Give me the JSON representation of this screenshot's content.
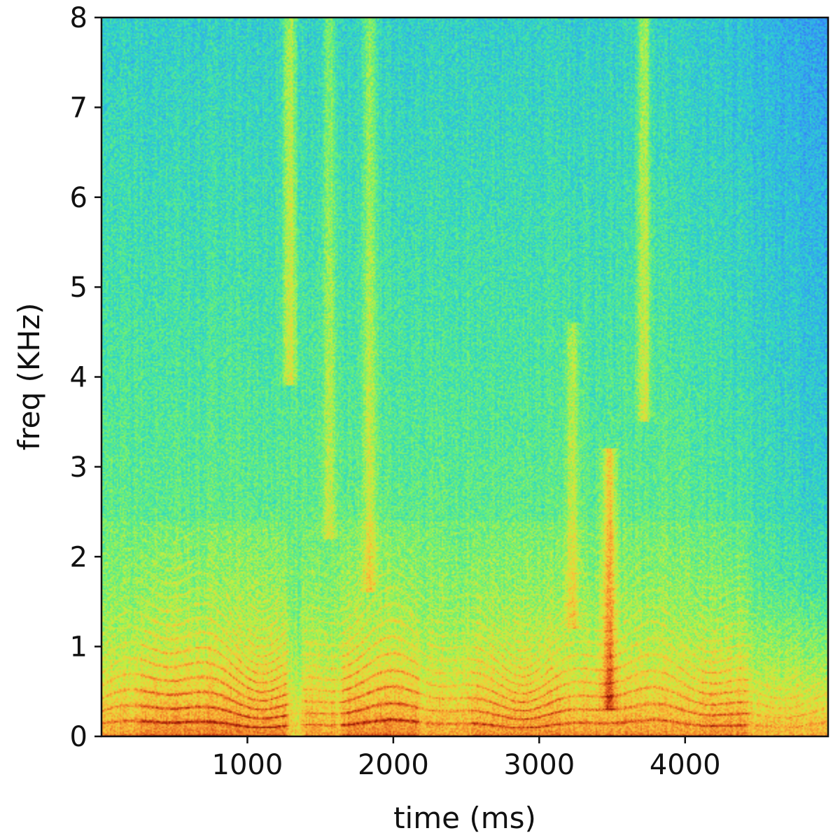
{
  "chart_data": {
    "type": "heatmap",
    "title": "",
    "xlabel": "time (ms)",
    "ylabel": "freq (KHz)",
    "xlim": [
      0,
      4980
    ],
    "ylim": [
      0,
      8
    ],
    "x_ticks": [
      {
        "value": 1000,
        "label": "1000"
      },
      {
        "value": 2000,
        "label": "2000"
      },
      {
        "value": 3000,
        "label": "3000"
      },
      {
        "value": 4000,
        "label": "4000"
      }
    ],
    "y_ticks": [
      {
        "value": 0,
        "label": "0"
      },
      {
        "value": 1,
        "label": "1"
      },
      {
        "value": 2,
        "label": "2"
      },
      {
        "value": 3,
        "label": "3"
      },
      {
        "value": 4,
        "label": "4"
      },
      {
        "value": 5,
        "label": "5"
      },
      {
        "value": 6,
        "label": "6"
      },
      {
        "value": 7,
        "label": "7"
      },
      {
        "value": 8,
        "label": "8"
      }
    ],
    "colormap": [
      "#3a5ef7",
      "#33a2f2",
      "#2ed6c8",
      "#67f07a",
      "#c6ee3f",
      "#f7c93a",
      "#f58a2c",
      "#d74a15",
      "#8e1505"
    ],
    "grid": false,
    "features": {
      "broadband_bursts": [
        {
          "time_ms": 1290,
          "freq_min_khz": 3.9,
          "freq_max_khz": 8.0,
          "strength": 0.75
        },
        {
          "time_ms": 1560,
          "freq_min_khz": 2.2,
          "freq_max_khz": 8.0,
          "strength": 0.55
        },
        {
          "time_ms": 1840,
          "freq_min_khz": 1.6,
          "freq_max_khz": 8.0,
          "strength": 0.6
        },
        {
          "time_ms": 3230,
          "freq_min_khz": 1.2,
          "freq_max_khz": 4.6,
          "strength": 0.55
        },
        {
          "time_ms": 3480,
          "freq_min_khz": 0.3,
          "freq_max_khz": 3.2,
          "strength": 0.9
        },
        {
          "time_ms": 3720,
          "freq_min_khz": 3.5,
          "freq_max_khz": 8.0,
          "strength": 0.7
        }
      ],
      "voiced_segments": [
        {
          "start_ms": 0,
          "end_ms": 280,
          "strength": 0.55
        },
        {
          "start_ms": 280,
          "end_ms": 1260,
          "strength": 0.9
        },
        {
          "start_ms": 1400,
          "end_ms": 1600,
          "strength": 0.55
        },
        {
          "start_ms": 1660,
          "end_ms": 2160,
          "strength": 0.9
        },
        {
          "start_ms": 2160,
          "end_ms": 2550,
          "strength": 0.5
        },
        {
          "start_ms": 2550,
          "end_ms": 3150,
          "strength": 0.75
        },
        {
          "start_ms": 3150,
          "end_ms": 4100,
          "strength": 0.65
        },
        {
          "start_ms": 4100,
          "end_ms": 4420,
          "strength": 0.75
        },
        {
          "start_ms": 4420,
          "end_ms": 4980,
          "strength": 0.35
        }
      ]
    }
  }
}
